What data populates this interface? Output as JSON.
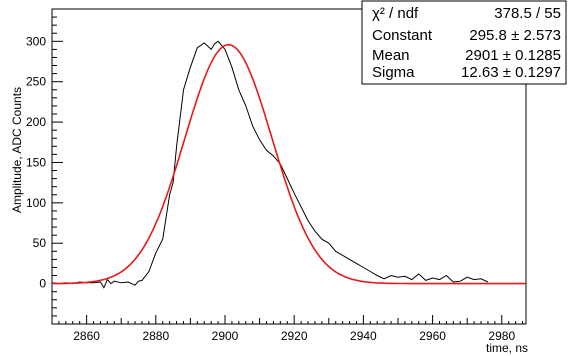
{
  "chart_data": {
    "type": "line",
    "xlabel": "time, ns",
    "ylabel": "Amplitude, ADC Counts",
    "xlim": [
      2850,
      2987
    ],
    "ylim": [
      -50,
      340
    ],
    "x_ticks": [
      2860,
      2880,
      2900,
      2920,
      2940,
      2960,
      2980
    ],
    "y_ticks": [
      0,
      50,
      100,
      150,
      200,
      250,
      300
    ],
    "grid": false,
    "series": [
      {
        "role": "histogram",
        "color": "#000000",
        "x": [
          2850,
          2852,
          2854,
          2856,
          2858,
          2860,
          2862,
          2864,
          2865,
          2866,
          2867,
          2868,
          2870,
          2872,
          2874,
          2875,
          2876,
          2878,
          2880,
          2882,
          2884,
          2885,
          2886,
          2888,
          2890,
          2892,
          2894,
          2896,
          2897,
          2898,
          2900,
          2902,
          2904,
          2906,
          2908,
          2910,
          2912,
          2914,
          2916,
          2918,
          2920,
          2922,
          2924,
          2926,
          2928,
          2930,
          2932,
          2934,
          2936,
          2938,
          2940,
          2942,
          2944,
          2946,
          2948,
          2950,
          2952,
          2954,
          2956,
          2958,
          2960,
          2962,
          2964,
          2966,
          2968,
          2970,
          2972,
          2974,
          2976
        ],
        "y": [
          1,
          0,
          1,
          0,
          2,
          1,
          1,
          2,
          -5,
          5,
          0,
          3,
          1,
          2,
          -2,
          3,
          4,
          15,
          38,
          55,
          110,
          125,
          170,
          240,
          268,
          292,
          298,
          290,
          297,
          300,
          290,
          268,
          240,
          220,
          195,
          178,
          165,
          158,
          148,
          130,
          112,
          95,
          78,
          65,
          55,
          50,
          40,
          35,
          30,
          25,
          20,
          15,
          10,
          6,
          10,
          8,
          9,
          5,
          12,
          4,
          7,
          5,
          10,
          2,
          3,
          8,
          5,
          6,
          2
        ]
      },
      {
        "role": "gaussian-fit",
        "color": "#e8191b",
        "constant": 295.8,
        "mean": 2901,
        "sigma": 12.63,
        "x_range": [
          2850,
          2987
        ]
      }
    ],
    "stats_box": {
      "position": "top-right",
      "rows": [
        {
          "label": "χ² / ndf",
          "value": "378.5 / 55"
        },
        {
          "label": "Constant",
          "value": "295.8 ± 2.573"
        },
        {
          "label": "Mean",
          "value": "2901 ± 0.1285"
        },
        {
          "label": "Sigma",
          "value": "12.63 ± 0.1297"
        }
      ]
    }
  }
}
